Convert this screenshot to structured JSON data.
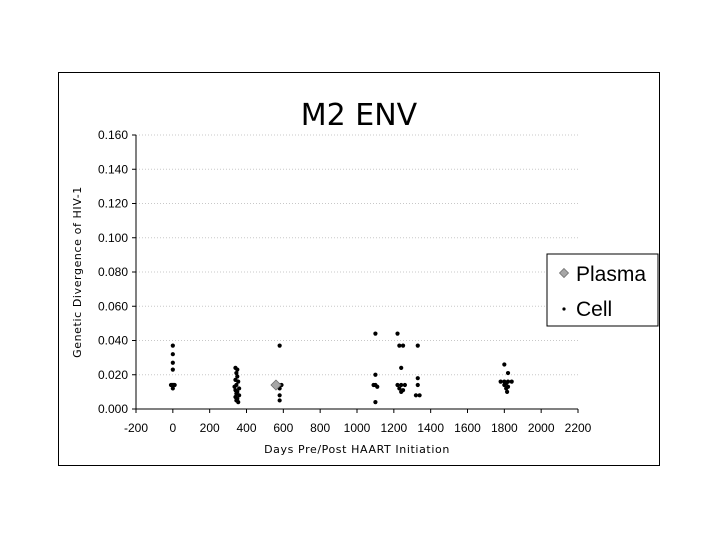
{
  "chart_data": {
    "type": "scatter",
    "title": "M2 ENV",
    "xlabel": "Days   Pre/Post   HAART   Initiation",
    "ylabel": "Genetic   Divergence   of   HIV-1",
    "xlim": [
      -200,
      2200
    ],
    "ylim": [
      0,
      0.16
    ],
    "x_ticks": [
      -200,
      0,
      200,
      400,
      600,
      800,
      1000,
      1200,
      1400,
      1600,
      1800,
      2000,
      2200
    ],
    "y_ticks": [
      "0.000",
      "0.020",
      "0.040",
      "0.060",
      "0.080",
      "0.100",
      "0.120",
      "0.140",
      "0.160"
    ],
    "grid": "horizontal dotted",
    "legend_position": "right",
    "series": [
      {
        "name": "Plasma",
        "marker": "diamond",
        "color": "#a6a6a6",
        "points": [
          [
            560,
            0.014
          ]
        ]
      },
      {
        "name": "Cell",
        "marker": "dot",
        "color": "#000000",
        "points": [
          [
            0,
            0.037
          ],
          [
            0,
            0.032
          ],
          [
            0,
            0.027
          ],
          [
            0,
            0.023
          ],
          [
            -10,
            0.014
          ],
          [
            -5,
            0.014
          ],
          [
            0,
            0.014
          ],
          [
            5,
            0.014
          ],
          [
            10,
            0.014
          ],
          [
            0,
            0.012
          ],
          [
            340,
            0.024
          ],
          [
            350,
            0.023
          ],
          [
            345,
            0.021
          ],
          [
            350,
            0.019
          ],
          [
            340,
            0.017
          ],
          [
            355,
            0.016
          ],
          [
            345,
            0.014
          ],
          [
            335,
            0.013
          ],
          [
            360,
            0.012
          ],
          [
            340,
            0.011
          ],
          [
            350,
            0.01
          ],
          [
            345,
            0.009
          ],
          [
            360,
            0.008
          ],
          [
            340,
            0.007
          ],
          [
            350,
            0.006
          ],
          [
            345,
            0.005
          ],
          [
            355,
            0.004
          ],
          [
            580,
            0.037
          ],
          [
            560,
            0.014
          ],
          [
            575,
            0.014
          ],
          [
            590,
            0.014
          ],
          [
            580,
            0.012
          ],
          [
            580,
            0.008
          ],
          [
            580,
            0.005
          ],
          [
            1100,
            0.044
          ],
          [
            1100,
            0.02
          ],
          [
            1090,
            0.014
          ],
          [
            1100,
            0.014
          ],
          [
            1110,
            0.013
          ],
          [
            1100,
            0.004
          ],
          [
            1220,
            0.044
          ],
          [
            1230,
            0.037
          ],
          [
            1250,
            0.037
          ],
          [
            1240,
            0.024
          ],
          [
            1220,
            0.014
          ],
          [
            1240,
            0.014
          ],
          [
            1260,
            0.014
          ],
          [
            1230,
            0.012
          ],
          [
            1250,
            0.011
          ],
          [
            1240,
            0.01
          ],
          [
            1330,
            0.037
          ],
          [
            1330,
            0.018
          ],
          [
            1330,
            0.014
          ],
          [
            1320,
            0.008
          ],
          [
            1340,
            0.008
          ],
          [
            1800,
            0.026
          ],
          [
            1820,
            0.021
          ],
          [
            1780,
            0.016
          ],
          [
            1800,
            0.016
          ],
          [
            1820,
            0.016
          ],
          [
            1840,
            0.016
          ],
          [
            1810,
            0.015
          ],
          [
            1800,
            0.014
          ],
          [
            1820,
            0.013
          ],
          [
            1810,
            0.012
          ],
          [
            1815,
            0.01
          ]
        ]
      }
    ]
  }
}
